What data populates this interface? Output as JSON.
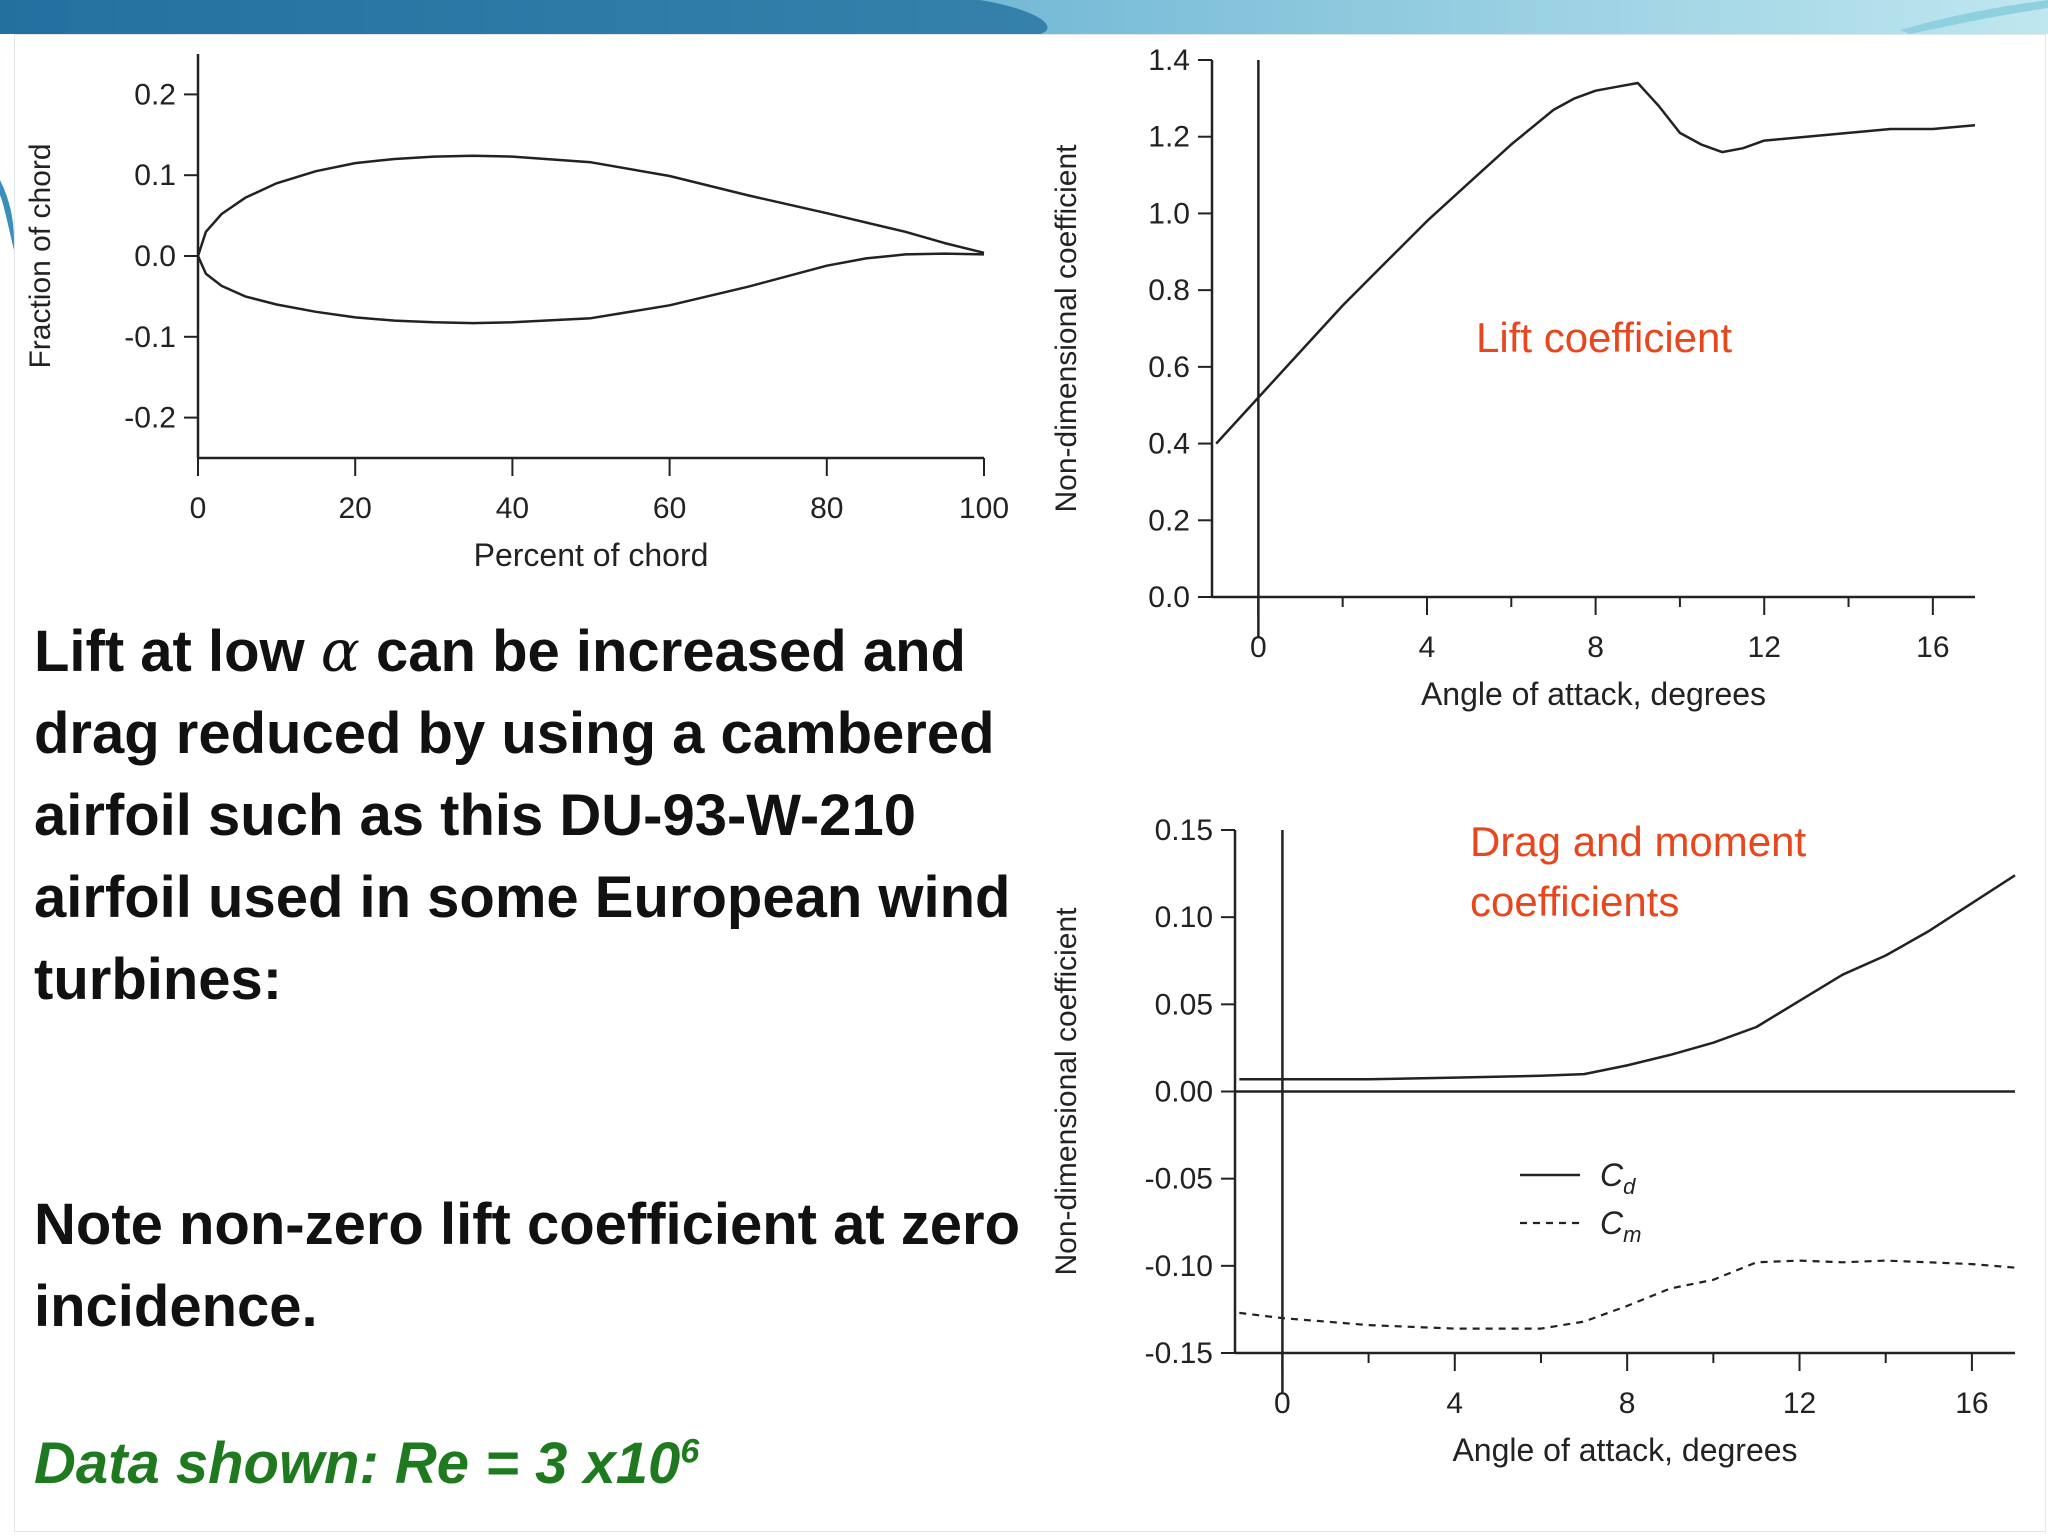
{
  "slide": {
    "paragraph1": {
      "before": "Lift at low ",
      "symbol": "α",
      "after": " can be increased and drag reduced by using a cambered airfoil such as this DU-93-W-210 airfoil used in some European wind turbines:"
    },
    "paragraph2": "Note non-zero lift coefficient at zero incidence.",
    "note": {
      "text": "Data shown: Re = 3 x10",
      "superscript": "6"
    }
  },
  "chart_data": [
    {
      "type": "line",
      "xlabel": "Percent of chord",
      "ylabel": "Fraction of chord",
      "xticks": [
        "0",
        "20",
        "40",
        "60",
        "80",
        "100"
      ],
      "yticks": [
        "0.2",
        "0.1",
        "0.0",
        "-0.1",
        "-0.2"
      ],
      "xlim": [
        0,
        100
      ],
      "ylim": [
        -0.25,
        0.25
      ],
      "grid": false,
      "series": [
        {
          "x": [
            0,
            1,
            3,
            6,
            10,
            15,
            20,
            25,
            30,
            35,
            40,
            50,
            60,
            70,
            80,
            90,
            95,
            100
          ],
          "y": [
            0.0,
            0.03,
            0.052,
            0.072,
            0.09,
            0.105,
            0.115,
            0.12,
            0.123,
            0.124,
            0.123,
            0.116,
            0.099,
            0.075,
            0.053,
            0.03,
            0.016,
            0.004
          ]
        },
        {
          "x": [
            0,
            1,
            3,
            6,
            10,
            15,
            20,
            25,
            30,
            35,
            40,
            50,
            60,
            70,
            80,
            85,
            90,
            95,
            100
          ],
          "y": [
            0.0,
            -0.022,
            -0.037,
            -0.05,
            -0.06,
            -0.069,
            -0.076,
            -0.08,
            -0.082,
            -0.083,
            -0.082,
            -0.077,
            -0.061,
            -0.038,
            -0.012,
            -0.003,
            0.002,
            0.003,
            0.002
          ]
        }
      ]
    },
    {
      "type": "line",
      "xlabel": "Angle of attack, degrees",
      "ylabel": "Non-dimensional coefficient",
      "xticks": [
        "0",
        "4",
        "8",
        "12",
        "16"
      ],
      "yticks": [
        "1.4",
        "1.2",
        "1.0",
        "0.8",
        "0.6",
        "0.4",
        "0.2",
        "0.0"
      ],
      "xlim": [
        -1.1,
        17
      ],
      "ylim": [
        0,
        1.4
      ],
      "grid": false,
      "annotation": "Lift coefficient",
      "series": [
        {
          "x": [
            -1,
            0,
            1,
            2,
            3,
            4,
            5,
            6,
            7,
            7.5,
            8,
            8.5,
            9,
            9.5,
            10,
            10.5,
            11,
            11.5,
            12,
            13,
            14,
            15,
            16,
            17
          ],
          "y": [
            0.4,
            0.52,
            0.64,
            0.76,
            0.87,
            0.98,
            1.08,
            1.18,
            1.27,
            1.3,
            1.32,
            1.33,
            1.34,
            1.28,
            1.21,
            1.18,
            1.16,
            1.17,
            1.19,
            1.2,
            1.21,
            1.22,
            1.22,
            1.23
          ]
        }
      ]
    },
    {
      "type": "line",
      "xlabel": "Angle of attack, degrees",
      "ylabel": "Non-dimensional coefficient",
      "xticks": [
        "0",
        "4",
        "8",
        "12",
        "16"
      ],
      "yticks": [
        "0.15",
        "0.10",
        "0.05",
        "0.00",
        "-0.05",
        "-0.10",
        "-0.15"
      ],
      "xlim": [
        -1.1,
        17
      ],
      "ylim": [
        -0.15,
        0.15
      ],
      "grid": false,
      "annotation": "Drag and moment coefficients",
      "legend_position": "center",
      "series": [
        {
          "name": "C_d",
          "display": "C",
          "subscript": "d",
          "style": "solid",
          "x": [
            -1,
            0,
            2,
            4,
            6,
            7,
            8,
            9,
            10,
            11,
            12,
            13,
            14,
            15,
            16,
            17
          ],
          "y": [
            0.007,
            0.007,
            0.007,
            0.008,
            0.009,
            0.01,
            0.015,
            0.021,
            0.028,
            0.037,
            0.052,
            0.067,
            0.078,
            0.092,
            0.108,
            0.124
          ]
        },
        {
          "name": "C_m",
          "display": "C",
          "subscript": "m",
          "style": "dashed",
          "x": [
            -1,
            0,
            2,
            4,
            6,
            7,
            8,
            9,
            10,
            11,
            12,
            13,
            14,
            15,
            16,
            17
          ],
          "y": [
            -0.127,
            -0.13,
            -0.134,
            -0.136,
            -0.136,
            -0.132,
            -0.123,
            -0.113,
            -0.108,
            -0.098,
            -0.097,
            -0.098,
            -0.097,
            -0.098,
            -0.099,
            -0.101
          ]
        }
      ]
    }
  ],
  "colors": {
    "annotation": "#e8461c",
    "note": "#1f7a1f",
    "ink": "#222222"
  }
}
